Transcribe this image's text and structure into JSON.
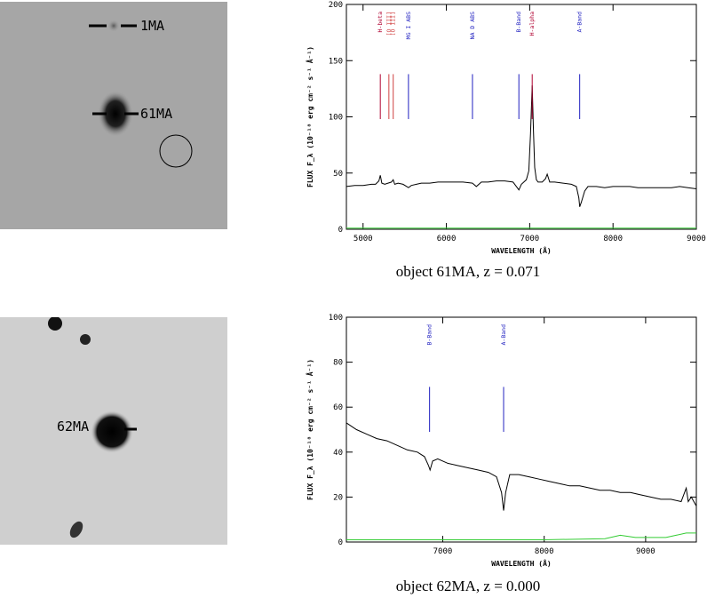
{
  "image_panels": [
    {
      "labels": [
        "1MA",
        "61MA"
      ]
    },
    {
      "labels": [
        "62MA"
      ]
    }
  ],
  "chart_data": [
    {
      "type": "line",
      "title": "",
      "xlabel": "WAVELENGTH (Å)",
      "ylabel": "FLUX F_λ (10⁻¹⁸ erg cm⁻² s⁻¹ Å⁻¹)",
      "xlim": [
        4800,
        9000
      ],
      "ylim": [
        0,
        200
      ],
      "xticks": [
        5000,
        6000,
        7000,
        8000,
        9000
      ],
      "yticks": [
        0,
        50,
        100,
        150,
        200
      ],
      "caption": "object 61MA, z = 0.071",
      "lines": [
        {
          "label": "H-beta",
          "x": 5207,
          "color": "#b00030"
        },
        {
          "label": "[O III]",
          "x": 5310,
          "color": "#d04040"
        },
        {
          "label": "[O III]",
          "x": 5362,
          "color": "#d04040"
        },
        {
          "label": "MG I ABS",
          "x": 5545,
          "color": "#2020c0"
        },
        {
          "label": "NA D ABS",
          "x": 6313,
          "color": "#2020c0"
        },
        {
          "label": "B-Band",
          "x": 6870,
          "color": "#2020c0"
        },
        {
          "label": "H-alpha",
          "x": 7030,
          "color": "#b00030"
        },
        {
          "label": "A-Band",
          "x": 7600,
          "color": "#2020c0"
        }
      ],
      "series": [
        {
          "color": "#000000",
          "x": [
            4800,
            4900,
            5000,
            5100,
            5150,
            5190,
            5207,
            5225,
            5260,
            5300,
            5340,
            5362,
            5380,
            5420,
            5480,
            5545,
            5580,
            5640,
            5700,
            5800,
            5900,
            6000,
            6100,
            6200,
            6313,
            6360,
            6420,
            6500,
            6600,
            6700,
            6800,
            6840,
            6870,
            6900,
            6930,
            6960,
            6990,
            7010,
            7030,
            7045,
            7060,
            7080,
            7100,
            7150,
            7190,
            7210,
            7240,
            7300,
            7400,
            7500,
            7560,
            7590,
            7600,
            7620,
            7660,
            7700,
            7800,
            7900,
            8000,
            8100,
            8200,
            8300,
            8400,
            8500,
            8600,
            8700,
            8800,
            8900,
            9000
          ],
          "y": [
            38,
            39,
            39,
            40,
            40,
            43,
            48,
            41,
            40,
            41,
            42,
            44,
            40,
            41,
            40,
            37,
            39,
            40,
            41,
            41,
            42,
            42,
            42,
            42,
            41,
            38,
            42,
            42,
            43,
            43,
            42,
            38,
            35,
            40,
            42,
            44,
            52,
            85,
            128,
            88,
            55,
            44,
            42,
            42,
            45,
            49,
            42,
            42,
            41,
            40,
            38,
            28,
            20,
            24,
            34,
            38,
            38,
            37,
            38,
            38,
            38,
            37,
            37,
            37,
            37,
            37,
            38,
            37,
            36
          ]
        },
        {
          "color": "#33cc33",
          "x": [
            4800,
            5500,
            6500,
            7500,
            8500,
            9000
          ],
          "y": [
            1,
            1,
            1,
            1,
            1,
            1
          ]
        }
      ]
    },
    {
      "type": "line",
      "title": "",
      "xlabel": "WAVELENGTH (Å)",
      "ylabel": "FLUX F_λ (10⁻¹⁸ erg cm⁻² s⁻¹ Å⁻¹)",
      "xlim": [
        6050,
        9500
      ],
      "ylim": [
        0,
        100
      ],
      "xticks": [
        7000,
        8000,
        9000
      ],
      "yticks": [
        0,
        20,
        40,
        60,
        80,
        100
      ],
      "caption": "object 62MA, z = 0.000",
      "lines": [
        {
          "label": "B-Band",
          "x": 6870,
          "color": "#2020c0"
        },
        {
          "label": "A-Band",
          "x": 7600,
          "color": "#2020c0"
        }
      ],
      "series": [
        {
          "color": "#000000",
          "x": [
            6050,
            6150,
            6250,
            6350,
            6450,
            6550,
            6650,
            6750,
            6820,
            6860,
            6875,
            6900,
            6950,
            7050,
            7150,
            7250,
            7350,
            7450,
            7530,
            7580,
            7600,
            7620,
            7660,
            7750,
            7850,
            7950,
            8050,
            8150,
            8250,
            8350,
            8450,
            8550,
            8650,
            8750,
            8850,
            8950,
            9050,
            9150,
            9250,
            9350,
            9400,
            9420,
            9450,
            9500
          ],
          "y": [
            53,
            50,
            48,
            46,
            45,
            43,
            41,
            40,
            38,
            34,
            32,
            36,
            37,
            35,
            34,
            33,
            32,
            31,
            29,
            22,
            14,
            22,
            30,
            30,
            29,
            28,
            27,
            26,
            25,
            25,
            24,
            23,
            23,
            22,
            22,
            21,
            20,
            19,
            19,
            18,
            24,
            18,
            20,
            16
          ]
        },
        {
          "color": "#33cc33",
          "x": [
            6050,
            7000,
            8000,
            8600,
            8750,
            8900,
            9050,
            9200,
            9300,
            9400,
            9500
          ],
          "y": [
            1,
            1,
            1,
            1.5,
            3,
            2,
            2,
            2,
            3,
            4,
            4
          ]
        }
      ]
    }
  ]
}
